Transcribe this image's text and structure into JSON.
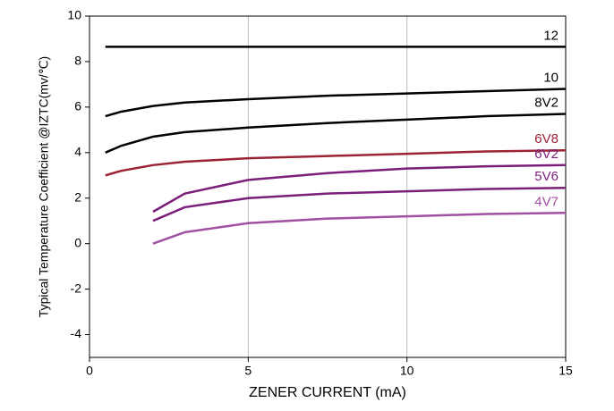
{
  "chart_data": {
    "type": "line",
    "y_label": "Typical Temperature Coefficient @IZTC(mv/℃)",
    "x_label": "ZENER CURRENT (mA)",
    "x": [
      0.5,
      1,
      2,
      3,
      5,
      7.5,
      10,
      12.5,
      15
    ],
    "xlim": [
      0,
      15
    ],
    "xticks": [
      0,
      5,
      10,
      15
    ],
    "ylim": [
      -5,
      10
    ],
    "yticks": [
      -4,
      -2,
      0,
      2,
      4,
      6,
      8,
      10
    ],
    "grid": "x",
    "series": [
      {
        "name": "12",
        "color": "#000000",
        "values": [
          8.65,
          8.65,
          8.65,
          8.65,
          8.65,
          8.65,
          8.65,
          8.65,
          8.65
        ]
      },
      {
        "name": "10",
        "color": "#000000",
        "values": [
          5.6,
          5.8,
          6.05,
          6.2,
          6.35,
          6.5,
          6.6,
          6.7,
          6.8
        ]
      },
      {
        "name": "8V2",
        "color": "#000000",
        "values": [
          4.0,
          4.3,
          4.7,
          4.9,
          5.1,
          5.3,
          5.45,
          5.6,
          5.7
        ]
      },
      {
        "name": "6V8",
        "color": "#9b2335",
        "values": [
          3.0,
          3.2,
          3.45,
          3.6,
          3.75,
          3.85,
          3.95,
          4.05,
          4.1
        ]
      },
      {
        "name": "6V2",
        "color": "#7b1f7a",
        "values": [
          null,
          null,
          1.4,
          2.2,
          2.8,
          3.1,
          3.3,
          3.4,
          3.45
        ]
      },
      {
        "name": "5V6",
        "color": "#7b1f7a",
        "values": [
          null,
          null,
          1.0,
          1.6,
          2.0,
          2.2,
          2.3,
          2.4,
          2.45
        ]
      },
      {
        "name": "4V7",
        "color": "#a050a0",
        "values": [
          null,
          null,
          0.0,
          0.5,
          0.9,
          1.1,
          1.2,
          1.3,
          1.35
        ]
      }
    ]
  }
}
